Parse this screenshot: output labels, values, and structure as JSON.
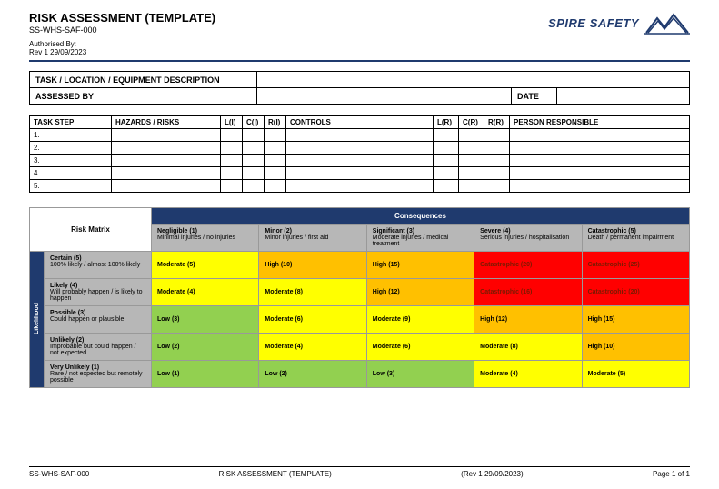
{
  "header": {
    "title": "RISK ASSESSMENT (TEMPLATE)",
    "doc_id": "SS-WHS-SAF-000",
    "authorised_label": "Authorised By:",
    "rev": "Rev 1 29/09/2023",
    "brand": "SPIRE SAFETY",
    "brand_color": "#1f3a6e"
  },
  "desc": {
    "task_label": "TASK / LOCATION / EQUIPMENT DESCRIPTION",
    "assessed_label": "ASSESSED BY",
    "date_label": "DATE",
    "task_value": "",
    "assessed_value": "",
    "date_value": ""
  },
  "hazard_table": {
    "columns": [
      "TASK STEP",
      "HAZARDS / RISKS",
      "L(I)",
      "C(I)",
      "R(I)",
      "CONTROLS",
      "L(R)",
      "C(R)",
      "R(R)",
      "PERSON RESPONSIBLE"
    ],
    "col_widths": [
      "90px",
      "120px",
      "24px",
      "24px",
      "24px",
      "162px",
      "28px",
      "28px",
      "28px",
      ""
    ],
    "rows": [
      [
        "1.",
        "",
        "",
        "",
        "",
        "",
        "",
        "",
        "",
        ""
      ],
      [
        "2.",
        "",
        "",
        "",
        "",
        "",
        "",
        "",
        "",
        ""
      ],
      [
        "3.",
        "",
        "",
        "",
        "",
        "",
        "",
        "",
        "",
        ""
      ],
      [
        "4.",
        "",
        "",
        "",
        "",
        "",
        "",
        "",
        "",
        ""
      ],
      [
        "5.",
        "",
        "",
        "",
        "",
        "",
        "",
        "",
        "",
        ""
      ]
    ]
  },
  "matrix": {
    "title_risk_matrix": "Risk Matrix",
    "consequences_label": "Consequences",
    "likelihood_label": "Likelihood",
    "col_widths": {
      "likelihood_strip": "16px",
      "row_hdr": "118px",
      "cell": "auto"
    },
    "colors": {
      "low": "#92d050",
      "moderate": "#ffff00",
      "high": "#ffc000",
      "catastrophic": "#ff0000",
      "header_bg": "#1f3a6e",
      "subheader_bg": "#b7b7b7",
      "cat_text": "#7a1a00",
      "border": "#999999"
    },
    "consequence_cols": [
      {
        "level": "Negligible (1)",
        "desc": "Minimal injuries / no injuries"
      },
      {
        "level": "Minor (2)",
        "desc": "Minor injuries / first aid"
      },
      {
        "level": "Significant (3)",
        "desc": "Moderate injuries / medical treatment"
      },
      {
        "level": "Severe (4)",
        "desc": "Serious injuries / hospitalisation"
      },
      {
        "level": "Catastrophic (5)",
        "desc": "Death / permanent impairment"
      }
    ],
    "likelihood_rows": [
      {
        "level": "Certain (5)",
        "desc": "100% likely / almost 100% likely"
      },
      {
        "level": "Likely (4)",
        "desc": "Will probably happen / is likely to happen"
      },
      {
        "level": "Possible (3)",
        "desc": "Could happen or plausible"
      },
      {
        "level": "Unlikely (2)",
        "desc": "Improbable but could happen / not expected"
      },
      {
        "level": "Very Unlikely (1)",
        "desc": "Rare / not expected but remotely possible"
      }
    ],
    "cells": [
      [
        {
          "label": "Moderate (5)",
          "color": "moderate"
        },
        {
          "label": "High (10)",
          "color": "high"
        },
        {
          "label": "High (15)",
          "color": "high"
        },
        {
          "label": "Catastrophic (20)",
          "color": "catastrophic"
        },
        {
          "label": "Catastrophic (25)",
          "color": "catastrophic"
        }
      ],
      [
        {
          "label": "Moderate (4)",
          "color": "moderate"
        },
        {
          "label": "Moderate (8)",
          "color": "moderate"
        },
        {
          "label": "High (12)",
          "color": "high"
        },
        {
          "label": "Catastrophic (16)",
          "color": "catastrophic"
        },
        {
          "label": "Catastrophic (20)",
          "color": "catastrophic"
        }
      ],
      [
        {
          "label": "Low (3)",
          "color": "low"
        },
        {
          "label": "Moderate (6)",
          "color": "moderate"
        },
        {
          "label": "Moderate (9)",
          "color": "moderate"
        },
        {
          "label": "High (12)",
          "color": "high"
        },
        {
          "label": "High (15)",
          "color": "high"
        }
      ],
      [
        {
          "label": "Low (2)",
          "color": "low"
        },
        {
          "label": "Moderate (4)",
          "color": "moderate"
        },
        {
          "label": "Moderate (6)",
          "color": "moderate"
        },
        {
          "label": "Moderate (8)",
          "color": "moderate"
        },
        {
          "label": "High (10)",
          "color": "high"
        }
      ],
      [
        {
          "label": "Low (1)",
          "color": "low"
        },
        {
          "label": "Low (2)",
          "color": "low"
        },
        {
          "label": "Low (3)",
          "color": "low"
        },
        {
          "label": "Moderate (4)",
          "color": "moderate"
        },
        {
          "label": "Moderate (5)",
          "color": "moderate"
        }
      ]
    ]
  },
  "footer": {
    "left": "SS-WHS-SAF-000",
    "center1": "RISK ASSESSMENT (TEMPLATE)",
    "center2": "(Rev 1 29/09/2023)",
    "right": "Page 1 of 1"
  }
}
